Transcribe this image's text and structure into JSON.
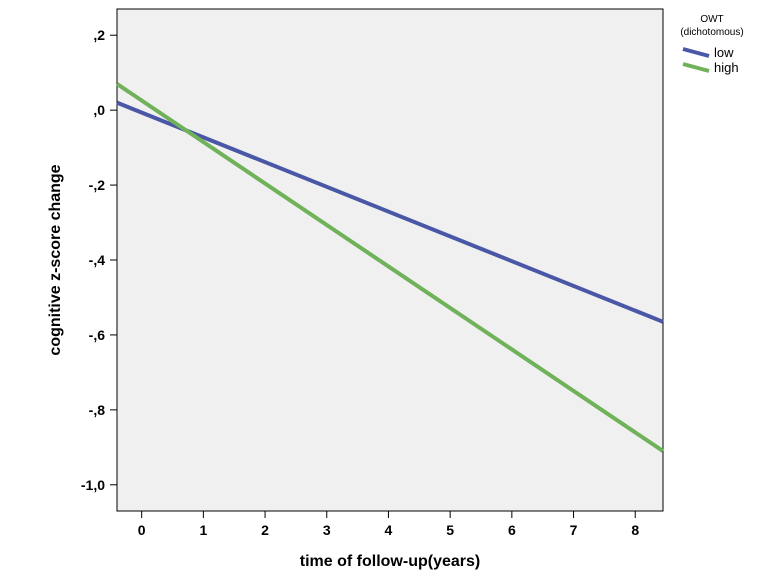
{
  "chart_data": {
    "type": "line",
    "title": "",
    "xlabel": "time of follow-up(years)",
    "ylabel": "cognitive z-score change",
    "xlim": [
      -0.4,
      8.45
    ],
    "ylim": [
      -1.07,
      0.27
    ],
    "x_ticks": [
      0,
      1,
      2,
      3,
      4,
      5,
      6,
      7,
      8
    ],
    "x_tick_labels": [
      "0",
      "1",
      "2",
      "3",
      "4",
      "5",
      "6",
      "7",
      "8"
    ],
    "y_ticks": [
      0.2,
      0.0,
      -0.2,
      -0.4,
      -0.6,
      -0.8,
      -1.0
    ],
    "y_tick_labels": [
      ",2",
      ",0",
      "-,2",
      "-,4",
      "-,6",
      "-,8",
      "-1,0"
    ],
    "grid": false,
    "background": "#f0f0f0",
    "legend": {
      "title_lines": [
        "OWT",
        "(dichotomous)"
      ],
      "position": "outside-top-right"
    },
    "series": [
      {
        "name": "low",
        "color": "#4a57a6",
        "x": [
          -0.4,
          8.45
        ],
        "y": [
          0.02,
          -0.565
        ]
      },
      {
        "name": "high",
        "color": "#6fb25a",
        "x": [
          -0.4,
          8.45
        ],
        "y": [
          0.07,
          -0.91
        ]
      }
    ]
  }
}
